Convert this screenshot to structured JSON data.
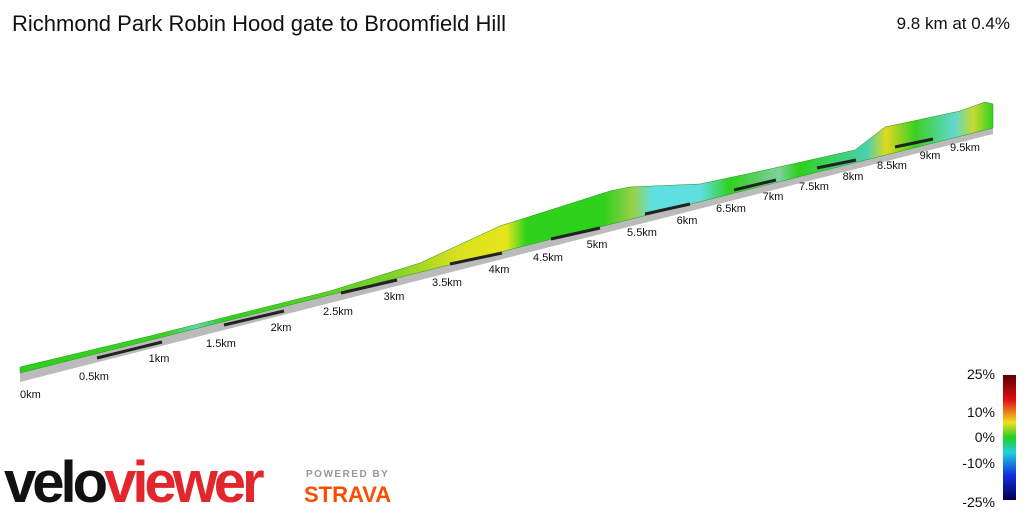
{
  "header": {
    "title": "Richmond Park Robin Hood gate to Broomfield Hill",
    "summary": "9.8 km at 0.4%"
  },
  "distance_labels": [
    "0km",
    "0.5km",
    "1km",
    "1.5km",
    "2km",
    "2.5km",
    "3km",
    "3.5km",
    "4km",
    "4.5km",
    "5km",
    "5.5km",
    "6km",
    "6.5km",
    "7km",
    "7.5km",
    "8km",
    "8.5km",
    "9km",
    "9.5km"
  ],
  "gradient_scale": [
    "25%",
    "10%",
    "0%",
    "-10%",
    "-25%"
  ],
  "branding": {
    "logo_left": "velo",
    "logo_right": "viewer",
    "powered": "POWERED BY",
    "strava": "STRAVA"
  }
}
